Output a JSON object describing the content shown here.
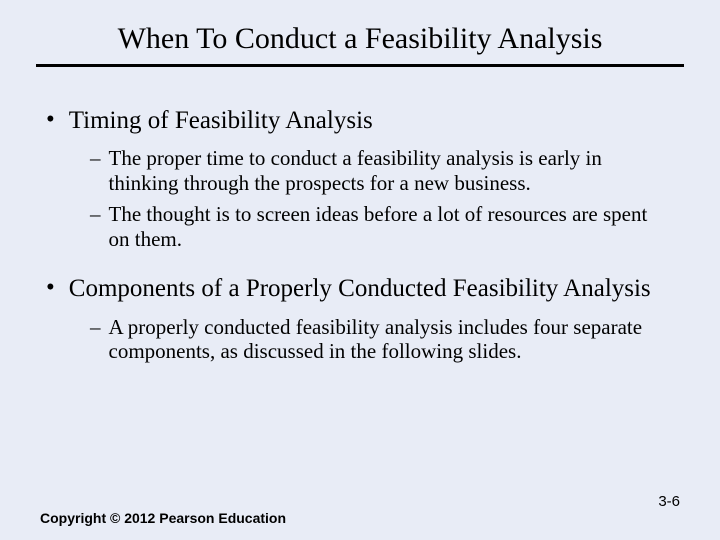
{
  "title": "When To Conduct a Feasibility Analysis",
  "sections": [
    {
      "heading": "Timing of Feasibility Analysis",
      "subbullets": [
        "The proper time to conduct a feasibility analysis is early in thinking through the prospects for a new business.",
        "The thought is to screen ideas before a lot of resources are spent on them."
      ]
    },
    {
      "heading": "Components of a Properly Conducted Feasibility Analysis",
      "subbullets": [
        "A properly conducted feasibility analysis includes four separate components, as discussed in the following slides."
      ]
    }
  ],
  "footer": "Copyright © 2012 Pearson Education",
  "page_number": "3-6",
  "style": {
    "background_color": "#e8ecf6",
    "text_color": "#000000",
    "rule_color": "#000000",
    "title_fontsize": 30,
    "l1_fontsize": 25,
    "l2_fontsize": 21,
    "footer_fontsize": 14,
    "footer_font": "Arial",
    "body_font": "Times New Roman"
  }
}
